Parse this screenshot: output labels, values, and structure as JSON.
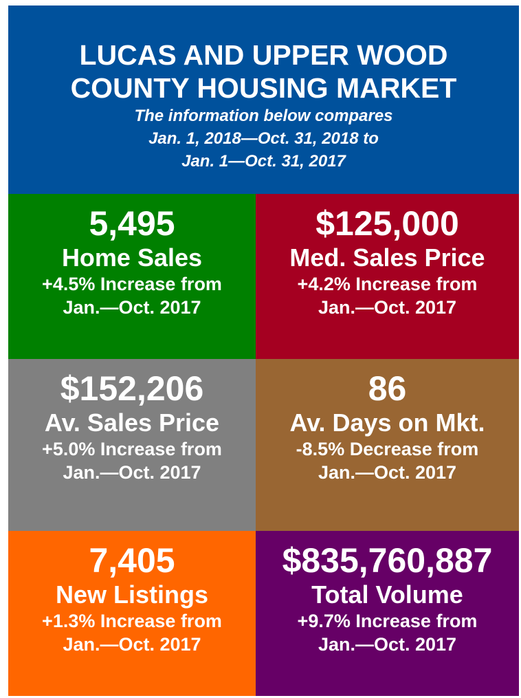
{
  "header": {
    "title": [
      "LUCAS AND UPPER WOOD",
      "COUNTY HOUSING MARKET"
    ],
    "subtitle": [
      "The information below compares",
      "Jan. 1, 2018—Oct. 31, 2018 to",
      "Jan. 1—Oct. 31, 2017"
    ]
  },
  "tiles": [
    {
      "value": "5,495",
      "label": "Home Sales",
      "change": "+4.5% Increase from",
      "period": "Jan.—Oct. 2017",
      "color": "#008000"
    },
    {
      "value": "$125,000",
      "label": "Med. Sales Price",
      "change": "+4.2% Increase from",
      "period": "Jan.—Oct. 2017",
      "color": "#a50021"
    },
    {
      "value": "$152,206",
      "label": "Av. Sales Price",
      "change": "+5.0% Increase from",
      "period": "Jan.—Oct. 2017",
      "color": "#808080"
    },
    {
      "value": "86",
      "label": "Av. Days on Mkt.",
      "change": "-8.5% Decrease from",
      "period": "Jan.—Oct. 2017",
      "color": "#996633"
    },
    {
      "value": "7,405",
      "label": "New Listings",
      "change": "+1.3% Increase from",
      "period": "Jan.—Oct. 2017",
      "color": "#ff6600"
    },
    {
      "value": "$835,760,887",
      "label": "Total Volume",
      "change": "+9.7% Increase from",
      "period": "Jan.—Oct. 2017",
      "color": "#660066"
    }
  ]
}
